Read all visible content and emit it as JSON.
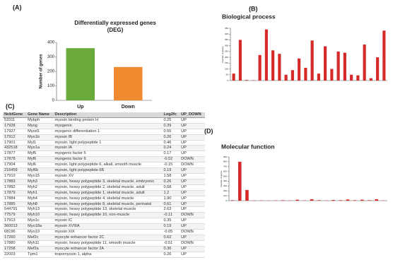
{
  "panel_labels": [
    "(A)",
    "(B)",
    "(C)",
    "(D)"
  ],
  "chart_data": [
    {
      "type": "bar",
      "title": "Differentially expressed genes",
      "subtitle": "(DEG)",
      "y_label": "Number of genes",
      "categories": [
        "Up",
        "Down"
      ],
      "values": [
        360,
        230
      ],
      "colors": [
        "#6aaa3a",
        "#f08a30"
      ],
      "ylim": [
        0,
        400
      ],
      "yticks": [
        0,
        100,
        200,
        300,
        400
      ]
    },
    {
      "type": "bar",
      "title": "Biological process",
      "y_label": "Number of genes",
      "categories": [
        null,
        null,
        null,
        null,
        null,
        null,
        null,
        null,
        null,
        null,
        null,
        null,
        null,
        null,
        null,
        null,
        null,
        null,
        null,
        null,
        null,
        null,
        null,
        null
      ],
      "values": [
        60,
        350,
        5,
        3,
        220,
        440,
        260,
        230,
        50,
        90,
        190,
        110,
        345,
        60,
        295,
        100,
        250,
        240,
        50,
        45,
        310,
        20,
        200,
        430
      ],
      "color": "#d42a2a",
      "ylim": [
        0,
        450
      ],
      "yticks": [
        0,
        50,
        100,
        150,
        200,
        250,
        300,
        350,
        400,
        450
      ]
    },
    {
      "type": "bar",
      "title": "Molecular function",
      "y_label": "Number of genes",
      "categories": [
        null,
        null,
        null,
        null,
        null,
        null,
        null,
        null,
        null,
        null,
        null,
        null,
        null,
        null,
        null,
        null,
        null,
        null,
        null,
        null,
        null,
        null
      ],
      "values": [
        10,
        800,
        220,
        5,
        5,
        3,
        5,
        10,
        5,
        20,
        5,
        30,
        10,
        5,
        15,
        10,
        25,
        10,
        20,
        10,
        30,
        5
      ],
      "color": "#d42a2a",
      "ylim": [
        0,
        900
      ],
      "yticks": [
        0,
        100,
        200,
        300,
        400,
        500,
        600,
        700,
        800,
        900
      ]
    }
  ],
  "table": {
    "columns": [
      "NcbiGene",
      "Gene Name",
      "Description",
      "Log2fc",
      "UP_DOWN"
    ],
    "rows": [
      [
        "53311",
        "Mybph",
        "myosin binding protein H",
        "0.25",
        "UP"
      ],
      [
        "17928",
        "Myog",
        "myogenin",
        "0.39",
        "UP"
      ],
      [
        "17927",
        "Myod1",
        "myogenic differentiation 1",
        "0.55",
        "UP"
      ],
      [
        "17912",
        "Myo1b",
        "myosin IB",
        "0.26",
        "UP"
      ],
      [
        "17901",
        "Myl1",
        "myosin, light polypeptide 1",
        "0.46",
        "UP"
      ],
      [
        "432518",
        "Myo1a",
        "myosin IA",
        "0.24",
        "UP"
      ],
      [
        "17877",
        "Myf5",
        "myogenic factor 5",
        "0.17",
        "UP"
      ],
      [
        "17878",
        "Myf6",
        "myogenic factor 6",
        "-0.52",
        "DOWN"
      ],
      [
        "17904",
        "Myl6",
        "myosin, light polypeptide 6, alkali, smooth muscle",
        "-0.15",
        "DOWN"
      ],
      [
        "216459",
        "Myl6b",
        "myosin, light polypeptide 6B",
        "0.19",
        "UP"
      ],
      [
        "17910",
        "Myo15",
        "myosin XV",
        "1.58",
        "UP"
      ],
      [
        "17883",
        "Myh3",
        "myosin, heavy polypeptide 3, skeletal muscle, embryonic",
        "0.26",
        "UP"
      ],
      [
        "17882",
        "Myh2",
        "myosin, heavy polypeptide 2, skeletal muscle, adult",
        "0.68",
        "UP"
      ],
      [
        "17879",
        "Myh1",
        "myosin, heavy polypeptide 1, skeletal muscle, adult",
        "1.2",
        "UP"
      ],
      [
        "17884",
        "Myh4",
        "myosin, heavy polypeptide 4, skeletal muscle",
        "1.90",
        "UP"
      ],
      [
        "17885",
        "Myh8",
        "myosin, heavy polypeptide 8, skeletal muscle, perinatal",
        "0.61",
        "UP"
      ],
      [
        "544791",
        "Myh13",
        "myosin, heavy polypeptide 13, skeletal muscle",
        "2.63",
        "UP"
      ],
      [
        "77579",
        "Myh10",
        "myosin, heavy polypeptide 10, non-muscle",
        "-0.11",
        "DOWN"
      ],
      [
        "17913",
        "Myo1c",
        "myosin IC",
        "0.35",
        "UP"
      ],
      [
        "360013",
        "Myo18a",
        "myosin XVIIIA",
        "0.19",
        "UP"
      ],
      [
        "68196",
        "Myo19",
        "myosin XIX",
        "-0.05",
        "DOWN"
      ],
      [
        "17260",
        "Mef2c",
        "myocyte enhancer factor 2C",
        "0.62",
        "UP"
      ],
      [
        "17880",
        "Myh11",
        "myosin, heavy polypeptide 11, smooth muscle",
        "-0.51",
        "DOWN"
      ],
      [
        "17258",
        "Mef2a",
        "myocyte enhancer factor 2A",
        "0.36",
        "UP"
      ],
      [
        "22003",
        "Tpm1",
        "tropomyosin 1, alpha",
        "0.26",
        "UP"
      ]
    ]
  }
}
